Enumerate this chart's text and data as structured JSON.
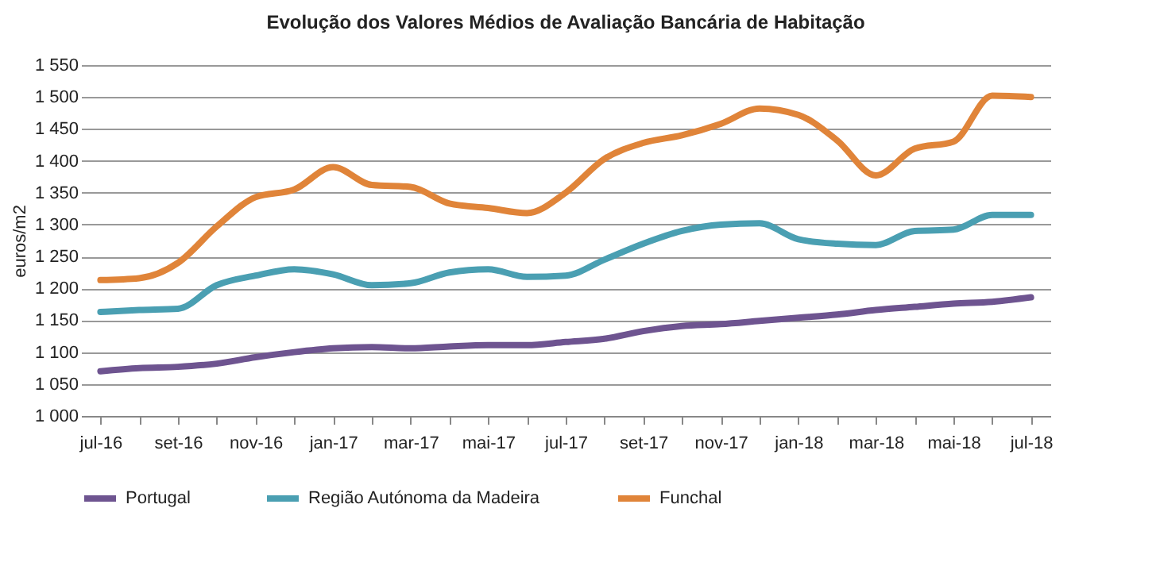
{
  "chart_data": {
    "type": "line",
    "title": "Evolução dos Valores Médios de Avaliação Bancária de Habitação",
    "ylabel": "euros/m2",
    "categories": [
      "jul-16",
      null,
      "set-16",
      null,
      "nov-16",
      null,
      "jan-17",
      null,
      "mar-17",
      null,
      "mai-17",
      null,
      "jul-17",
      null,
      "set-17",
      null,
      "nov-17",
      null,
      "jan-18",
      null,
      "mar-18",
      null,
      "mai-18",
      null,
      "jul-18"
    ],
    "series": [
      {
        "name": "Portugal",
        "color": "#6e5490",
        "values": [
          1070,
          1075,
          1077,
          1082,
          1092,
          1100,
          1106,
          1108,
          1106,
          1109,
          1111,
          1111,
          1116,
          1121,
          1133,
          1141,
          1144,
          1149,
          1154,
          1159,
          1166,
          1171,
          1176,
          1179,
          1186
        ]
      },
      {
        "name": "Região Autónoma da Madeira",
        "color": "#4a9fb2",
        "values": [
          1163,
          1166,
          1168,
          1205,
          1220,
          1230,
          1222,
          1205,
          1208,
          1225,
          1230,
          1218,
          1220,
          1245,
          1270,
          1290,
          1300,
          1302,
          1277,
          1270,
          1268,
          1290,
          1292,
          1315,
          1315
        ]
      },
      {
        "name": "Funchal",
        "color": "#e08439",
        "values": [
          1213,
          1216,
          1240,
          1297,
          1343,
          1355,
          1390,
          1362,
          1359,
          1333,
          1326,
          1318,
          1350,
          1403,
          1428,
          1440,
          1458,
          1482,
          1472,
          1432,
          1377,
          1419,
          1430,
          1502,
          1500
        ]
      }
    ],
    "ylim": [
      1000,
      1550
    ],
    "yticks": [
      {
        "value": 1000,
        "label": "1 000"
      },
      {
        "value": 1050,
        "label": "1 050"
      },
      {
        "value": 1100,
        "label": "1 100"
      },
      {
        "value": 1150,
        "label": "1 150"
      },
      {
        "value": 1200,
        "label": "1 200"
      },
      {
        "value": 1250,
        "label": "1 250"
      },
      {
        "value": 1300,
        "label": "1 300"
      },
      {
        "value": 1350,
        "label": "1 350"
      },
      {
        "value": 1400,
        "label": "1 400"
      },
      {
        "value": 1450,
        "label": "1 450"
      },
      {
        "value": 1500,
        "label": "1 500"
      },
      {
        "value": 1550,
        "label": "1 550"
      }
    ],
    "grid": "y",
    "legend": "bottom",
    "marker": "none",
    "line_style": "solid"
  }
}
